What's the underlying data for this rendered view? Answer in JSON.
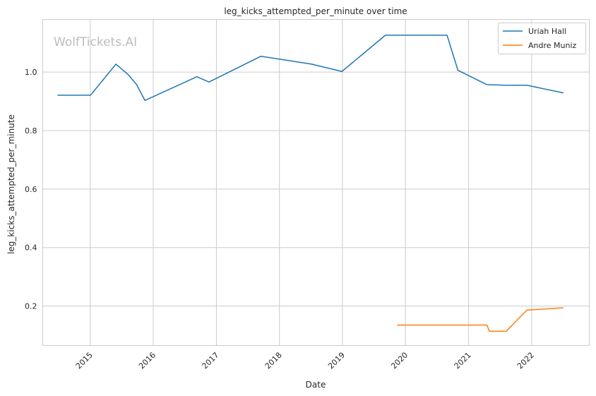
{
  "chart_data": {
    "type": "line",
    "title": "leg_kicks_attempted_per_minute over time",
    "xlabel": "Date",
    "ylabel": "leg_kicks_attempted_per_minute",
    "watermark": "WolfTickets.AI",
    "xlim": [
      "2014-04-01",
      "2022-12-01"
    ],
    "ylim": [
      0.065,
      1.18
    ],
    "x_ticks": [
      "2015",
      "2016",
      "2017",
      "2018",
      "2019",
      "2020",
      "2021",
      "2022"
    ],
    "y_ticks": [
      "0.2",
      "0.4",
      "0.6",
      "0.8",
      "1.0"
    ],
    "grid": true,
    "legend_position": "top-right",
    "series": [
      {
        "name": "Uriah Hall",
        "color": "#1f77b4",
        "points": [
          [
            "2014-06-28",
            0.921
          ],
          [
            "2015-01-03",
            0.921
          ],
          [
            "2015-05-30",
            1.027
          ],
          [
            "2015-08-08",
            0.992
          ],
          [
            "2015-09-27",
            0.957
          ],
          [
            "2015-11-14",
            0.903
          ],
          [
            "2016-09-10",
            0.984
          ],
          [
            "2016-11-19",
            0.966
          ],
          [
            "2017-09-16",
            1.054
          ],
          [
            "2018-07-07",
            1.027
          ],
          [
            "2018-12-29",
            1.002
          ],
          [
            "2019-09-07",
            1.126
          ],
          [
            "2020-08-29",
            1.126
          ],
          [
            "2020-10-31",
            1.006
          ],
          [
            "2021-04-17",
            0.957
          ],
          [
            "2021-08-07",
            0.955
          ],
          [
            "2021-12-04",
            0.955
          ],
          [
            "2022-07-02",
            0.929
          ]
        ]
      },
      {
        "name": "Andre Muniz",
        "color": "#ff7f0e",
        "points": [
          [
            "2019-11-16",
            0.135
          ],
          [
            "2021-04-17",
            0.135
          ],
          [
            "2021-05-01",
            0.114
          ],
          [
            "2021-08-07",
            0.114
          ],
          [
            "2021-12-04",
            0.186
          ],
          [
            "2022-07-02",
            0.194
          ]
        ]
      }
    ]
  }
}
